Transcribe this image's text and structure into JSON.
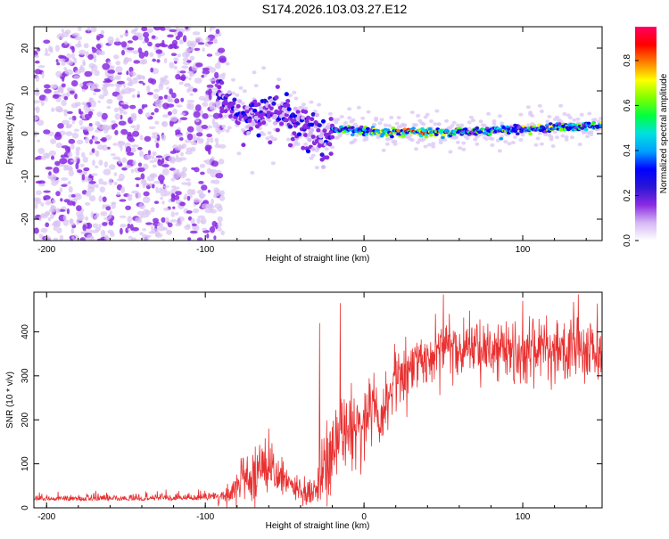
{
  "figure": {
    "title": "S174.2026.103.03.27.E12"
  },
  "colors": {
    "signal_line": "#e83030",
    "cloud": "#8a2be2",
    "cloud_light": "#d9c3f2",
    "frame": "#000000"
  },
  "chart_data": [
    {
      "type": "heatmap",
      "name": "spectrogram",
      "xlabel": "Height of straight line (km)",
      "ylabel": "Frequency (Hz)",
      "xlim": [
        -208,
        150
      ],
      "ylim": [
        -25,
        25
      ],
      "xticks": [
        -200,
        -100,
        0,
        100
      ],
      "yticks": [
        -20,
        -10,
        0,
        10,
        20
      ],
      "xtick_labels": [
        "-200",
        "-100",
        "0",
        "100"
      ],
      "ytick_labels": [
        "-20",
        "-10",
        "0",
        "10",
        "20"
      ],
      "colorbar": {
        "label": "Normalized spectral amplitude",
        "range": [
          0.0,
          0.95
        ],
        "ticks": [
          0.0,
          0.2,
          0.4,
          0.6,
          0.8
        ],
        "tick_labels": [
          "0.0",
          "0.2",
          "0.4",
          "0.6",
          "0.8"
        ],
        "colormap": [
          "#ffffff",
          "#d6b8f5",
          "#8a2be2",
          "#2a16d6",
          "#0000ff",
          "#00a0ff",
          "#00e0e0",
          "#00ff40",
          "#80ff00",
          "#ffff00",
          "#ff8000",
          "#ff0000",
          "#ff0060"
        ]
      },
      "features": {
        "noise_region_x": [
          -208,
          -92
        ],
        "transition_x": [
          -92,
          -20
        ],
        "carrier_frequency_hz": 0.5,
        "carrier_ridge": [
          [
            -92,
            10
          ],
          [
            -85,
            6
          ],
          [
            -75,
            3
          ],
          [
            -65,
            4
          ],
          [
            -55,
            5
          ],
          [
            -45,
            4
          ],
          [
            -35,
            1
          ],
          [
            -25,
            -2
          ],
          [
            -18,
            1
          ],
          [
            -10,
            1
          ],
          [
            0,
            0.5
          ],
          [
            50,
            0.3
          ],
          [
            100,
            1
          ],
          [
            150,
            2
          ]
        ],
        "peak_amplitude_region_x": [
          5,
          60
        ]
      }
    },
    {
      "type": "line",
      "name": "snr",
      "xlabel": "Height of straight line (km)",
      "ylabel": "SNR (10 * v/v)",
      "xlim": [
        -208,
        150
      ],
      "ylim": [
        0,
        490
      ],
      "xticks": [
        -200,
        -100,
        0,
        100
      ],
      "yticks": [
        0,
        100,
        200,
        300,
        400
      ],
      "xtick_labels": [
        "-200",
        "-100",
        "0",
        "100"
      ],
      "ytick_labels": [
        "0",
        "100",
        "200",
        "300",
        "400"
      ],
      "envelope": {
        "x": [
          -208,
          -150,
          -100,
          -92,
          -85,
          -80,
          -75,
          -70,
          -65,
          -60,
          -55,
          -50,
          -45,
          -40,
          -35,
          -30,
          -28,
          -25,
          -22,
          -20,
          -18,
          -15,
          -12,
          -10,
          -5,
          0,
          5,
          10,
          15,
          20,
          30,
          40,
          50,
          60,
          80,
          100,
          120,
          140,
          150
        ],
        "mean": [
          20,
          20,
          22,
          25,
          35,
          50,
          70,
          80,
          90,
          85,
          75,
          65,
          55,
          40,
          35,
          40,
          60,
          100,
          150,
          110,
          120,
          200,
          160,
          180,
          200,
          220,
          230,
          200,
          250,
          300,
          330,
          350,
          360,
          360,
          360,
          355,
          360,
          355,
          350
        ],
        "noise": [
          12,
          12,
          14,
          15,
          20,
          30,
          45,
          50,
          55,
          50,
          45,
          40,
          35,
          30,
          25,
          30,
          60,
          100,
          120,
          90,
          90,
          100,
          90,
          80,
          70,
          60,
          60,
          60,
          60,
          60,
          55,
          55,
          55,
          55,
          55,
          60,
          65,
          65,
          70
        ],
        "peaks": [
          [
            -60,
            180
          ],
          [
            -28,
            420
          ],
          [
            -15,
            465
          ],
          [
            50,
            485
          ],
          [
            100,
            470
          ],
          [
            135,
            485
          ]
        ]
      }
    }
  ]
}
